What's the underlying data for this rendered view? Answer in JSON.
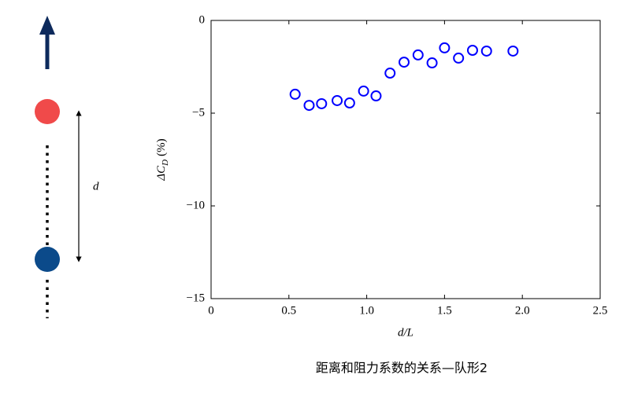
{
  "chart_data": {
    "type": "scatter",
    "xlabel": "d/L",
    "ylabel": {
      "main": "ΔC",
      "sub": "D",
      "unit": "(%)"
    },
    "x": [
      0.54,
      0.63,
      0.71,
      0.81,
      0.89,
      0.98,
      1.06,
      1.15,
      1.24,
      1.33,
      1.42,
      1.5,
      1.59,
      1.68,
      1.77,
      1.94
    ],
    "values": [
      -3.98,
      -4.58,
      -4.49,
      -4.32,
      -4.45,
      -3.81,
      -4.07,
      -2.84,
      -2.25,
      -1.86,
      -2.29,
      -1.48,
      -2.03,
      -1.61,
      -1.65,
      -1.65
    ],
    "color": "#0000ff",
    "xlim": [
      0,
      2.5
    ],
    "ylim": [
      -15,
      0
    ],
    "xticks": [
      0,
      0.5,
      {
        "value": 1,
        "label": "1.0"
      },
      1.5,
      {
        "value": 2,
        "label": "2.0"
      },
      2.5
    ],
    "yticks": [
      {
        "value": 0,
        "label": "0"
      },
      {
        "value": -5,
        "label": "−5"
      },
      {
        "value": -10,
        "label": "−10"
      },
      {
        "value": -15,
        "label": "−15"
      }
    ]
  },
  "diagram": {
    "label": "d"
  },
  "caption": "距离和阻力系数的关系—队形2"
}
